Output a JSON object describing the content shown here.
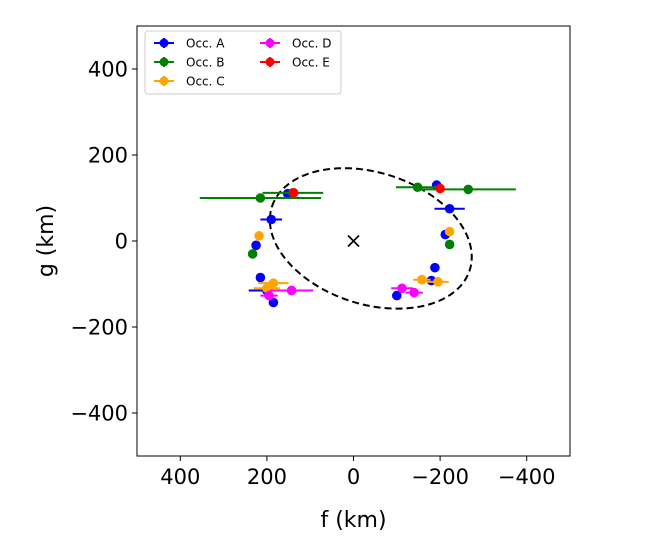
{
  "chart_data": {
    "type": "scatter",
    "xlabel": "f (km)",
    "ylabel": "g (km)",
    "xlim": [
      500,
      -500
    ],
    "ylim": [
      -500,
      500
    ],
    "x_ticks": [
      400,
      200,
      0,
      -200,
      -400
    ],
    "y_ticks": [
      -400,
      -200,
      0,
      200,
      400
    ],
    "x_tick_labels": [
      "400",
      "200",
      "0",
      "−200",
      "−400"
    ],
    "y_tick_labels": [
      "−400",
      "−200",
      "0",
      "200",
      "400"
    ],
    "grid": false,
    "legend_position": "top-left",
    "center_marker": {
      "f": 0,
      "g": 0,
      "symbol": "x"
    },
    "ellipse": {
      "center_f": -40,
      "center_g": 6,
      "semi_major": 240,
      "semi_minor": 153,
      "tilt_deg": 18,
      "style": "dashed",
      "color": "#000000"
    },
    "series": [
      {
        "name": "Occ. A",
        "color": "#0000ff",
        "points": [
          {
            "f": 152,
            "g": 110,
            "ferr": 0
          },
          {
            "f": 190,
            "g": 50,
            "ferr": 25
          },
          {
            "f": 225,
            "g": -10,
            "ferr": 0
          },
          {
            "f": 215,
            "g": -85,
            "ferr": 0
          },
          {
            "f": 200,
            "g": -115,
            "ferr": 42
          },
          {
            "f": 185,
            "g": -143,
            "ferr": 0
          },
          {
            "f": -192,
            "g": 130,
            "ferr": 0
          },
          {
            "f": -222,
            "g": 75,
            "ferr": 35
          },
          {
            "f": -212,
            "g": 15,
            "ferr": 0
          },
          {
            "f": -188,
            "g": -62,
            "ferr": 0
          },
          {
            "f": -180,
            "g": -92,
            "ferr": 0
          },
          {
            "f": -100,
            "g": -127,
            "ferr": 0
          }
        ]
      },
      {
        "name": "Occ. B",
        "color": "#008000",
        "points": [
          {
            "f": 215,
            "g": 100,
            "ferr": 140
          },
          {
            "f": 140,
            "g": 112,
            "ferr": 70
          },
          {
            "f": 233,
            "g": -30,
            "ferr": 0
          },
          {
            "f": -148,
            "g": 125,
            "ferr": 50
          },
          {
            "f": -265,
            "g": 120,
            "ferr": 110
          },
          {
            "f": -222,
            "g": -8,
            "ferr": 0
          }
        ]
      },
      {
        "name": "Occ. C",
        "color": "#ffa500",
        "points": [
          {
            "f": 218,
            "g": 12,
            "ferr": 0
          },
          {
            "f": 185,
            "g": -98,
            "ferr": 35
          },
          {
            "f": 200,
            "g": -110,
            "ferr": 30
          },
          {
            "f": -222,
            "g": 22,
            "ferr": 0
          },
          {
            "f": -158,
            "g": -90,
            "ferr": 20
          },
          {
            "f": -195,
            "g": -95,
            "ferr": 25
          }
        ]
      },
      {
        "name": "Occ. D",
        "color": "#ff00ff",
        "points": [
          {
            "f": 195,
            "g": -127,
            "ferr": 20
          },
          {
            "f": 143,
            "g": -115,
            "ferr": 50
          },
          {
            "f": -112,
            "g": -110,
            "ferr": 25
          },
          {
            "f": -140,
            "g": -120,
            "ferr": 20
          }
        ]
      },
      {
        "name": "Occ. E",
        "color": "#ff0000",
        "points": [
          {
            "f": 138,
            "g": 112,
            "ferr": 0
          },
          {
            "f": -200,
            "g": 122,
            "ferr": 0
          }
        ]
      }
    ]
  }
}
